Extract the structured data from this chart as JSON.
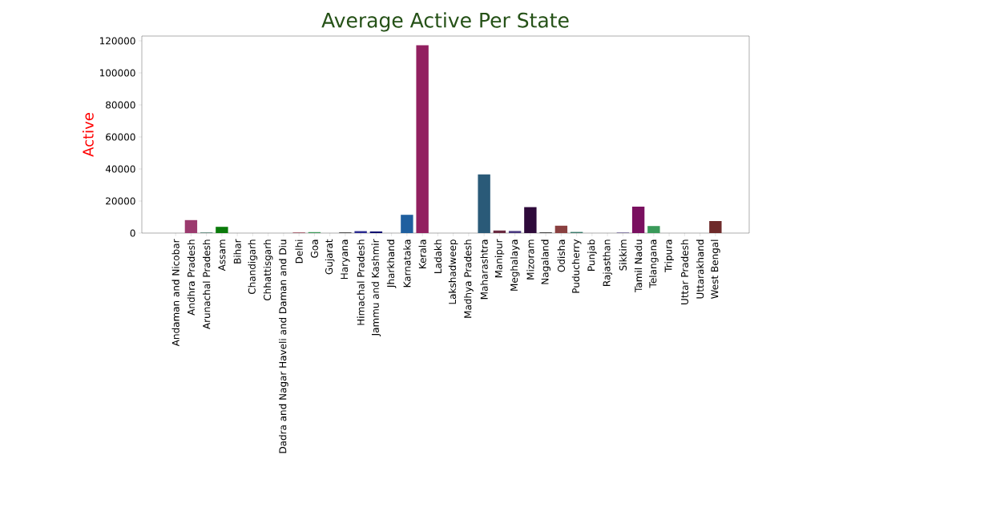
{
  "chart_data": {
    "type": "bar",
    "title": "Average Active Per State",
    "ylabel": "Active",
    "categories": [
      "Andaman and Nicobar",
      "Andhra Pradesh",
      "Arunachal Pradesh",
      "Assam",
      "Bihar",
      "Chandigarh",
      "Chhattisgarh",
      "Dadra and Nagar Haveli and Daman and Diu",
      "Delhi",
      "Goa",
      "Gujarat",
      "Haryana",
      "Himachal Pradesh",
      "Jammu and Kashmir",
      "Jharkhand",
      "Karnataka",
      "Kerala",
      "Ladakh",
      "Lakshadweep",
      "Madhya Pradesh",
      "Maharashtra",
      "Manipur",
      "Meghalaya",
      "Mizoram",
      "Nagaland",
      "Odisha",
      "Puducherry",
      "Punjab",
      "Rajasthan",
      "Sikkim",
      "Tamil Nadu",
      "Telangana",
      "Tripura",
      "Uttar Pradesh",
      "Uttarakhand",
      "West Bengal"
    ],
    "values": [
      0,
      8100,
      300,
      3900,
      0,
      0,
      0,
      0,
      400,
      600,
      0,
      400,
      1200,
      1000,
      0,
      11400,
      117300,
      0,
      0,
      0,
      36600,
      1600,
      1300,
      16200,
      400,
      4600,
      700,
      0,
      0,
      300,
      16500,
      4400,
      0,
      0,
      0,
      7500
    ],
    "colors": [
      "#6a6a6a",
      "#9b3a6e",
      "#2f6b5a",
      "#0a7a0a",
      "#7a5a3a",
      "#5a5a8a",
      "#8a3a5a",
      "#3a5a3a",
      "#a05060",
      "#3d9a5a",
      "#7a6a3a",
      "#333333",
      "#2a2a90",
      "#101070",
      "#5a3a7a",
      "#1f5f9f",
      "#922060",
      "#4a6a8a",
      "#6a4a4a",
      "#3a7a7a",
      "#2a5a78",
      "#6a2a40",
      "#4a3a80",
      "#2e0a3a",
      "#202020",
      "#8a4040",
      "#3a7a6a",
      "#7a3a3a",
      "#5a7a3a",
      "#5a4a8a",
      "#7a1060",
      "#3a9a5a",
      "#6a5a8a",
      "#3a3a6a",
      "#7a5a6a",
      "#6e2a2a"
    ],
    "ylim": [
      0,
      123000
    ],
    "yticks": [
      0,
      20000,
      40000,
      60000,
      80000,
      100000,
      120000
    ],
    "grid": false
  }
}
